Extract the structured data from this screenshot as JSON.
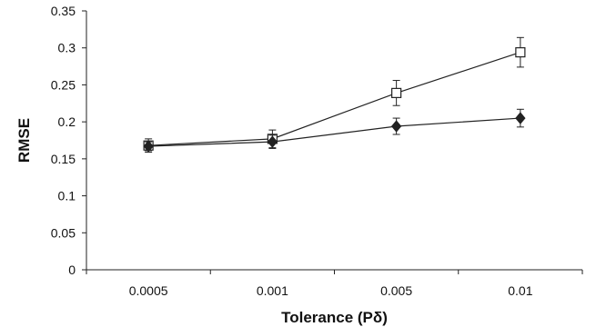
{
  "chart_data": {
    "type": "line",
    "title": "",
    "xlabel": "Tolerance  (Pδ)",
    "ylabel": "RMSE",
    "categories": [
      "0.0005",
      "0.001",
      "0.005",
      "0.01"
    ],
    "y_ticks": [
      "0",
      "0.05",
      "0.1",
      "0.15",
      "0.2",
      "0.25",
      "0.3",
      "0.35"
    ],
    "ylim": [
      0,
      0.35
    ],
    "grid": false,
    "legend": "none",
    "series": [
      {
        "marker": "open-square",
        "color": "#222222",
        "values": [
          0.168,
          0.177,
          0.239,
          0.294
        ],
        "error": [
          0.009,
          0.012,
          0.017,
          0.02
        ]
      },
      {
        "marker": "filled-diamond",
        "color": "#222222",
        "values": [
          0.167,
          0.173,
          0.194,
          0.205
        ],
        "error": [
          0.006,
          0.009,
          0.011,
          0.012
        ]
      }
    ]
  }
}
